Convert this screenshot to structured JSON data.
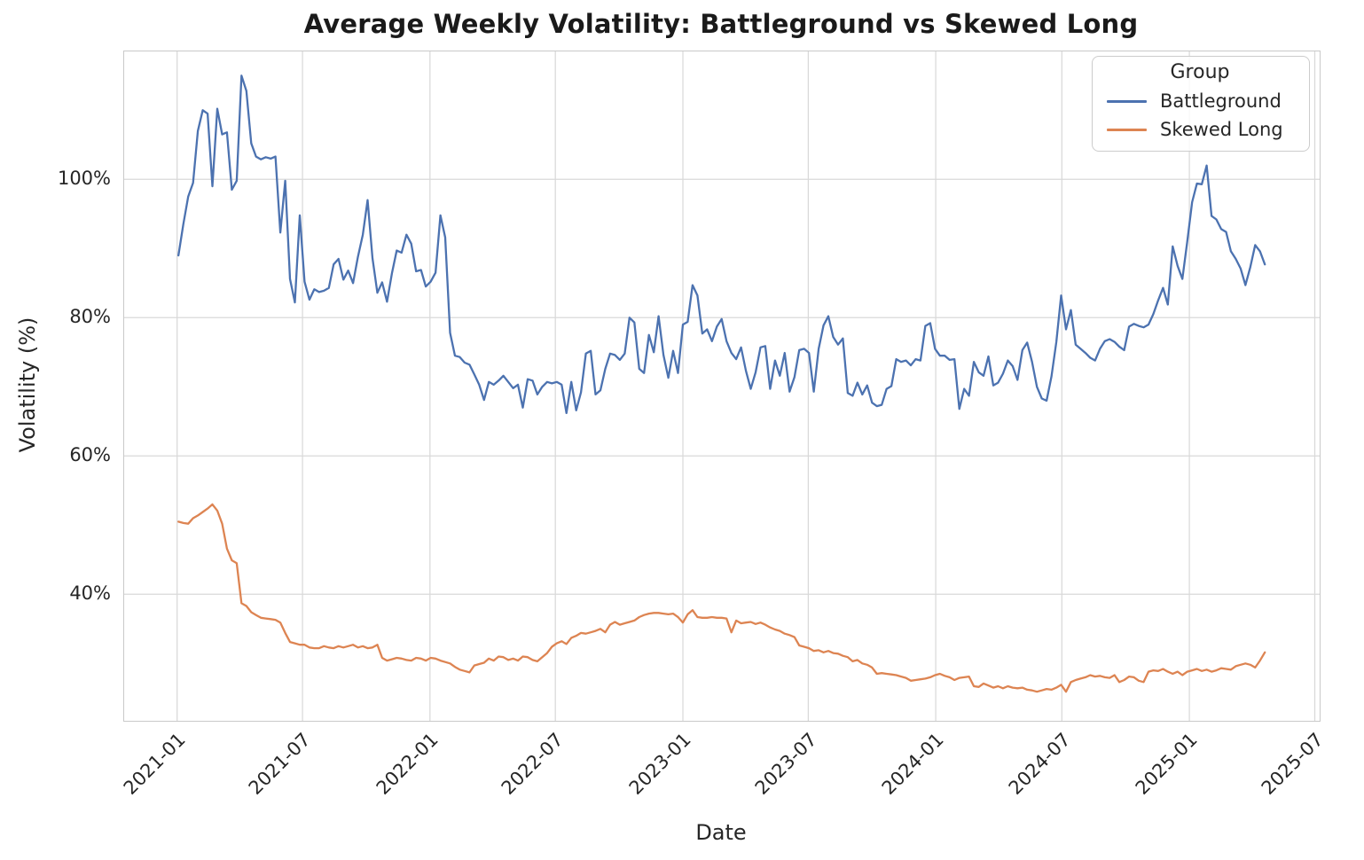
{
  "chart_data": {
    "type": "line",
    "title": "Average Weekly Volatility: Battleground vs Skewed Long",
    "xlabel": "Date",
    "ylabel": "Volatility (%)",
    "x_start_date": "2021-01-03",
    "x_step_days": 7,
    "x_unit": "weeks since 2021-01-03",
    "legend": {
      "title": "Group",
      "entries": [
        {
          "label": "Battleground",
          "color": "#4C72B0"
        },
        {
          "label": "Skewed Long",
          "color": "#DD8452"
        }
      ]
    },
    "x_ticks": [
      {
        "pos": -0.29,
        "label": "2021-01"
      },
      {
        "pos": 25.57,
        "label": "2021-07"
      },
      {
        "pos": 51.86,
        "label": "2022-01"
      },
      {
        "pos": 77.71,
        "label": "2022-07"
      },
      {
        "pos": 104.0,
        "label": "2023-01"
      },
      {
        "pos": 129.86,
        "label": "2023-07"
      },
      {
        "pos": 156.14,
        "label": "2024-01"
      },
      {
        "pos": 182.14,
        "label": "2024-07"
      },
      {
        "pos": 208.43,
        "label": "2025-01"
      },
      {
        "pos": 234.29,
        "label": "2025-07"
      }
    ],
    "y_ticks": [
      {
        "value": 40,
        "label": "40%"
      },
      {
        "value": 60,
        "label": "60%"
      },
      {
        "value": 80,
        "label": "80%"
      },
      {
        "value": 100,
        "label": "100%"
      }
    ],
    "layout": {
      "xlim": [
        -11.2,
        235.3
      ],
      "ylim": [
        21.7,
        118.5
      ],
      "grid": true,
      "grid_color": "#d9d9d9",
      "spine_color": "#c9c9c9",
      "legend_position": "upper right",
      "background": "#ffffff",
      "line_width": 2.3
    },
    "series": [
      {
        "name": "Battleground",
        "color": "#4C72B0",
        "data_name": "battleground-line",
        "values": [
          89,
          93.5,
          97.5,
          99.5,
          107,
          110,
          109.5,
          99,
          110.2,
          106.5,
          106.8,
          98.5,
          99.8,
          115,
          112.8,
          105.2,
          103.3,
          102.9,
          103.2,
          103,
          103.3,
          92.3,
          99.8,
          85.6,
          82.2,
          94.8,
          85.2,
          82.6,
          84.1,
          83.7,
          83.9,
          84.3,
          87.7,
          88.5,
          85.5,
          86.8,
          85,
          88.8,
          92,
          97,
          88.6,
          83.6,
          85.1,
          82.3,
          86.4,
          89.7,
          89.4,
          92,
          90.7,
          86.7,
          86.9,
          84.5,
          85.2,
          86.5,
          94.8,
          91.6,
          77.8,
          74.5,
          74.3,
          73.5,
          73.2,
          71.8,
          70.3,
          68.1,
          70.7,
          70.3,
          70.9,
          71.6,
          70.7,
          69.8,
          70.3,
          67,
          71.1,
          70.9,
          68.9,
          70,
          70.7,
          70.5,
          70.7,
          70.3,
          66.2,
          70.7,
          66.6,
          69.2,
          74.8,
          75.2,
          68.9,
          69.5,
          72.6,
          74.8,
          74.6,
          73.9,
          74.8,
          80,
          79.3,
          72.6,
          72,
          77.5,
          75,
          80.2,
          74.6,
          71.3,
          75.2,
          72,
          79,
          79.4,
          84.7,
          83.2,
          77.7,
          78.3,
          76.6,
          78.7,
          79.8,
          76.6,
          74.9,
          74,
          75.7,
          72.3,
          69.7,
          72.1,
          75.7,
          75.9,
          69.7,
          73.8,
          71.6,
          74.9,
          69.3,
          71.4,
          75.3,
          75.5,
          74.9,
          69.3,
          75.5,
          78.9,
          80.2,
          77.2,
          76.1,
          77,
          69.1,
          68.7,
          70.6,
          68.9,
          70.2,
          67.7,
          67.2,
          67.4,
          69.7,
          70.1,
          74,
          73.6,
          73.8,
          73.1,
          74,
          73.8,
          78.8,
          79.2,
          75.5,
          74.5,
          74.5,
          73.9,
          74,
          66.8,
          69.7,
          68.7,
          73.6,
          72.1,
          71.6,
          74.4,
          70.2,
          70.6,
          71.9,
          73.8,
          73,
          71,
          75.3,
          76.4,
          73.6,
          70,
          68.3,
          68,
          71.5,
          76.5,
          83.2,
          78.3,
          81.1,
          76.1,
          75.5,
          74.9,
          74.2,
          73.8,
          75.5,
          76.6,
          76.9,
          76.5,
          75.8,
          75.3,
          78.7,
          79.1,
          78.8,
          78.6,
          79,
          80.5,
          82.5,
          84.3,
          81.9,
          90.3,
          87.5,
          85.6,
          91,
          96.7,
          99.4,
          99.3,
          102,
          94.7,
          94.2,
          92.8,
          92.4,
          89.6,
          88.5,
          87.1,
          84.7,
          87.3,
          90.5,
          89.6,
          87.7
        ]
      },
      {
        "name": "Skewed Long",
        "color": "#DD8452",
        "data_name": "skewed-long-line",
        "values": [
          50.5,
          50.3,
          50.2,
          51,
          51.4,
          51.9,
          52.4,
          53,
          52.1,
          50.2,
          46.6,
          44.9,
          44.5,
          38.7,
          38.3,
          37.4,
          37,
          36.6,
          36.5,
          36.4,
          36.3,
          35.9,
          34.4,
          33.1,
          32.9,
          32.7,
          32.7,
          32.3,
          32.2,
          32.2,
          32.5,
          32.3,
          32.2,
          32.5,
          32.3,
          32.5,
          32.7,
          32.3,
          32.5,
          32.2,
          32.3,
          32.7,
          30.8,
          30.4,
          30.6,
          30.8,
          30.7,
          30.5,
          30.4,
          30.8,
          30.7,
          30.4,
          30.8,
          30.7,
          30.4,
          30.2,
          30,
          29.5,
          29.1,
          28.9,
          28.7,
          29.7,
          29.9,
          30.1,
          30.7,
          30.4,
          31,
          30.9,
          30.5,
          30.7,
          30.4,
          31,
          30.9,
          30.5,
          30.3,
          30.9,
          31.5,
          32.4,
          32.9,
          33.2,
          32.8,
          33.7,
          34,
          34.4,
          34.3,
          34.5,
          34.7,
          35,
          34.5,
          35.6,
          36,
          35.6,
          35.8,
          36,
          36.2,
          36.7,
          37,
          37.2,
          37.3,
          37.3,
          37.2,
          37.1,
          37.2,
          36.7,
          35.9,
          37.1,
          37.7,
          36.7,
          36.6,
          36.6,
          36.7,
          36.6,
          36.6,
          36.5,
          34.5,
          36.2,
          35.8,
          35.9,
          36,
          35.7,
          35.9,
          35.6,
          35.2,
          34.9,
          34.7,
          34.3,
          34.1,
          33.8,
          32.6,
          32.4,
          32.2,
          31.8,
          31.9,
          31.6,
          31.8,
          31.5,
          31.4,
          31.1,
          30.9,
          30.3,
          30.5,
          30,
          29.8,
          29.4,
          28.5,
          28.6,
          28.5,
          28.4,
          28.3,
          28.1,
          27.9,
          27.5,
          27.6,
          27.7,
          27.8,
          28,
          28.3,
          28.5,
          28.2,
          28,
          27.6,
          27.9,
          28,
          28.1,
          26.7,
          26.6,
          27.1,
          26.8,
          26.5,
          26.7,
          26.4,
          26.7,
          26.5,
          26.4,
          26.5,
          26.2,
          26.1,
          25.9,
          26.1,
          26.3,
          26.2,
          26.5,
          26.9,
          25.9,
          27.3,
          27.6,
          27.8,
          28,
          28.3,
          28.1,
          28.2,
          28,
          27.9,
          28.3,
          27.3,
          27.6,
          28.1,
          28,
          27.5,
          27.3,
          28.8,
          29,
          28.9,
          29.2,
          28.8,
          28.5,
          28.8,
          28.3,
          28.8,
          29,
          29.2,
          28.9,
          29.1,
          28.8,
          29,
          29.3,
          29.2,
          29.1,
          29.6,
          29.8,
          30,
          29.8,
          29.4,
          30.4,
          31.6
        ]
      }
    ]
  }
}
